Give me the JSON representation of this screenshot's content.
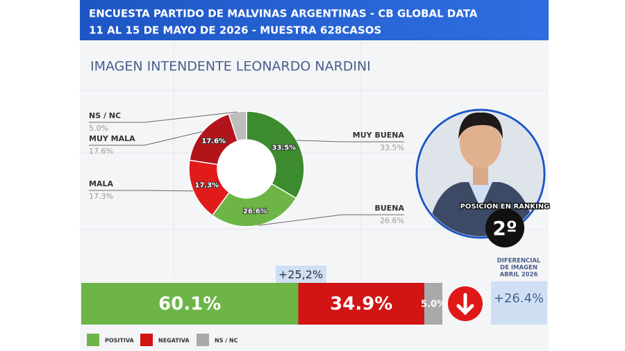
{
  "header": {
    "line1": "ENCUESTA PARTIDO DE MALVINAS ARGENTINAS - CB GLOBAL DATA",
    "line2": "11 AL 15 DE MAYO DE 2026 - MUESTRA 628CASOS"
  },
  "chart_data": [
    {
      "type": "donut",
      "title": "IMAGEN INTENDENTE  LEONARDO NARDINI",
      "categories": [
        "MUY BUENA",
        "BUENA",
        "MALA",
        "MUY MALA",
        "NS / NC"
      ],
      "values": [
        33.5,
        26.6,
        17.3,
        17.6,
        5.0
      ],
      "value_labels": [
        "33.5%",
        "26.6%",
        "17.3%",
        "17.6%",
        "5.0%"
      ],
      "colors": [
        "#3d8b2f",
        "#6cb546",
        "#e11a1a",
        "#b3141c",
        "#bdbdbd"
      ]
    },
    {
      "type": "stacked-bar",
      "categories": [
        "POSITIVA",
        "NEGATIVA",
        "NS / NC"
      ],
      "values": [
        60.1,
        34.9,
        5.0
      ],
      "value_labels": [
        "60.1%",
        "34.9%",
        "5.0%"
      ],
      "colors": [
        "#6cb546",
        "#d11414",
        "#a9a9a9"
      ],
      "annotation": "+25,2%"
    }
  ],
  "ranking": {
    "label": "POSICIÓN EN RANKING",
    "value": "2º"
  },
  "diferencial": {
    "label": [
      "DIFERENCIAL",
      "DE IMAGEN",
      "ABRIL 2026"
    ],
    "value": "+26.4%"
  }
}
